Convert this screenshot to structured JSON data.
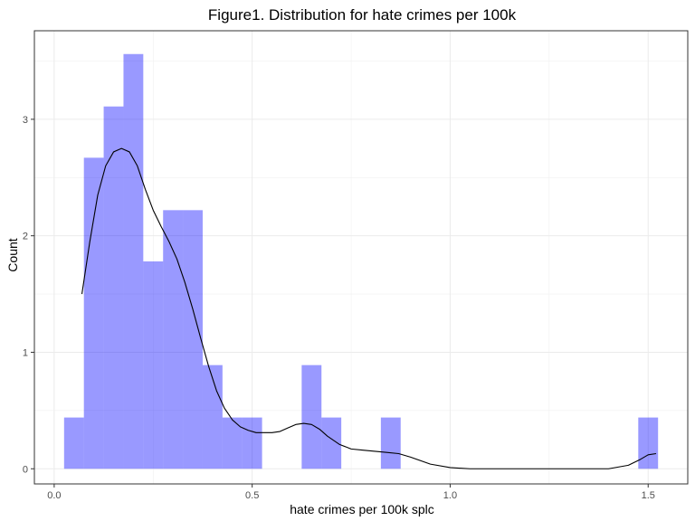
{
  "chart_data": {
    "type": "bar",
    "title": "Figure1. Distribution for hate crimes per 100k",
    "xlabel": "hate crimes per 100k splc",
    "ylabel": "Count",
    "xlim": [
      -0.05,
      1.6
    ],
    "ylim": [
      -0.13,
      3.76
    ],
    "x_ticks": [
      0.0,
      0.5,
      1.0,
      1.5
    ],
    "x_tick_labels": [
      "0.0",
      "0.5",
      "1.0",
      "1.5"
    ],
    "y_ticks": [
      0,
      1,
      2,
      3
    ],
    "y_tick_labels": [
      "0",
      "1",
      "2",
      "3"
    ],
    "grid": true,
    "bar_color": "#0000ff",
    "bar_opacity": 0.4,
    "bin_width": 0.05,
    "bins": [
      {
        "x0": 0.025,
        "x1": 0.075,
        "value": 0.44
      },
      {
        "x0": 0.075,
        "x1": 0.125,
        "value": 2.67
      },
      {
        "x0": 0.125,
        "x1": 0.175,
        "value": 3.11
      },
      {
        "x0": 0.175,
        "x1": 0.225,
        "value": 3.56
      },
      {
        "x0": 0.225,
        "x1": 0.275,
        "value": 1.78
      },
      {
        "x0": 0.275,
        "x1": 0.325,
        "value": 2.22
      },
      {
        "x0": 0.325,
        "x1": 0.375,
        "value": 2.22
      },
      {
        "x0": 0.375,
        "x1": 0.425,
        "value": 0.89
      },
      {
        "x0": 0.425,
        "x1": 0.475,
        "value": 0.44
      },
      {
        "x0": 0.475,
        "x1": 0.525,
        "value": 0.44
      },
      {
        "x0": 0.625,
        "x1": 0.675,
        "value": 0.89
      },
      {
        "x0": 0.675,
        "x1": 0.725,
        "value": 0.44
      },
      {
        "x0": 0.825,
        "x1": 0.875,
        "value": 0.44
      },
      {
        "x0": 1.475,
        "x1": 1.525,
        "value": 0.44
      }
    ],
    "density_curve": {
      "color": "#000000",
      "x": [
        0.07,
        0.09,
        0.11,
        0.13,
        0.15,
        0.17,
        0.19,
        0.21,
        0.23,
        0.25,
        0.27,
        0.29,
        0.31,
        0.33,
        0.35,
        0.37,
        0.39,
        0.41,
        0.43,
        0.45,
        0.47,
        0.49,
        0.51,
        0.53,
        0.55,
        0.57,
        0.59,
        0.61,
        0.63,
        0.65,
        0.67,
        0.69,
        0.72,
        0.75,
        0.78,
        0.81,
        0.84,
        0.87,
        0.9,
        0.95,
        1.0,
        1.05,
        1.1,
        1.2,
        1.3,
        1.4,
        1.45,
        1.48,
        1.5,
        1.52
      ],
      "y": [
        1.5,
        1.95,
        2.35,
        2.6,
        2.72,
        2.75,
        2.72,
        2.6,
        2.4,
        2.22,
        2.08,
        1.95,
        1.8,
        1.6,
        1.37,
        1.12,
        0.88,
        0.67,
        0.52,
        0.42,
        0.36,
        0.33,
        0.31,
        0.31,
        0.31,
        0.32,
        0.35,
        0.38,
        0.39,
        0.38,
        0.34,
        0.28,
        0.21,
        0.17,
        0.16,
        0.15,
        0.14,
        0.13,
        0.1,
        0.04,
        0.01,
        0.0,
        0.0,
        0.0,
        0.0,
        0.0,
        0.03,
        0.08,
        0.12,
        0.13
      ]
    }
  }
}
